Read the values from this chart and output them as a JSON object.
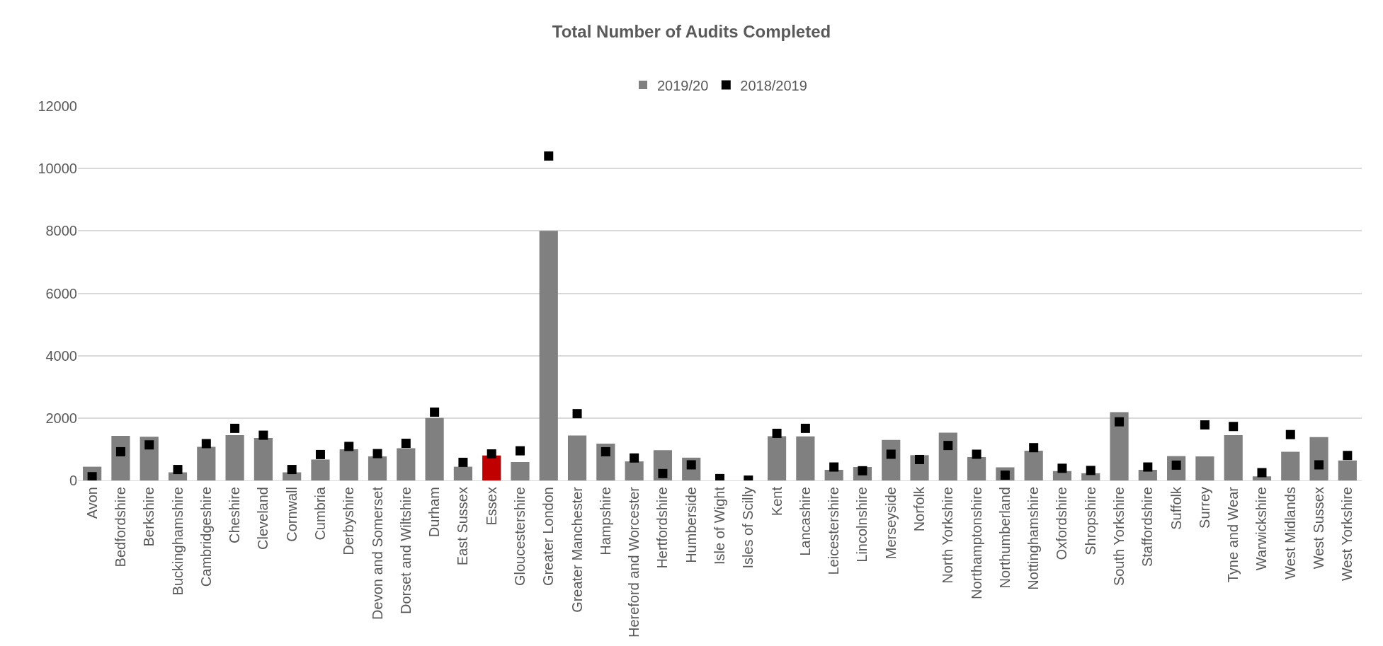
{
  "chart_data": {
    "type": "bar",
    "title": "Total Number of Audits Completed",
    "categories": [
      "Avon",
      "Bedfordshire",
      "Berkshire",
      "Buckinghamshire",
      "Cambridgeshire",
      "Cheshire",
      "Cleveland",
      "Cornwall",
      "Cumbria",
      "Derbyshire",
      "Devon and Somerset",
      "Dorset and Wiltshire",
      "Durham",
      "East Sussex",
      "Essex",
      "Gloucestershire",
      "Greater London",
      "Greater Manchester",
      "Hampshire",
      "Hereford and Worcester",
      "Hertfordshire",
      "Humberside",
      "Isle of Wight",
      "Isles of Scilly",
      "Kent",
      "Lancashire",
      "Leicestershire",
      "Lincolnshire",
      "Merseyside",
      "Norfolk",
      "North Yorkshire",
      "Northamptonshire",
      "Northumberland",
      "Nottinghamshire",
      "Oxfordshire",
      "Shropshire",
      "South Yorkshire",
      "Staffordshire",
      "Suffolk",
      "Surrey",
      "Tyne and Wear",
      "Warwickshire",
      "West Midlands",
      "West Sussex",
      "West Yorkshire"
    ],
    "series": [
      {
        "name": "2019/20",
        "color": "#808080",
        "colors": [
          "#808080",
          "#808080",
          "#808080",
          "#808080",
          "#808080",
          "#808080",
          "#808080",
          "#808080",
          "#808080",
          "#808080",
          "#808080",
          "#808080",
          "#808080",
          "#808080",
          "#c00000",
          "#808080",
          "#808080",
          "#808080",
          "#808080",
          "#808080",
          "#808080",
          "#808080",
          "#808080",
          "#808080",
          "#808080",
          "#808080",
          "#808080",
          "#808080",
          "#808080",
          "#808080",
          "#808080",
          "#808080",
          "#808080",
          "#808080",
          "#808080",
          "#808080",
          "#808080",
          "#808080",
          "#808080",
          "#808080",
          "#808080",
          "#808080",
          "#808080",
          "#808080",
          "#808080"
        ],
        "values": [
          440,
          1430,
          1400,
          260,
          1080,
          1450,
          1360,
          260,
          670,
          1000,
          770,
          1030,
          2000,
          440,
          800,
          590,
          8000,
          1440,
          1180,
          610,
          970,
          730,
          0,
          0,
          1420,
          1410,
          340,
          430,
          1300,
          810,
          1530,
          750,
          420,
          950,
          300,
          230,
          2190,
          340,
          780,
          770,
          1450,
          130,
          920,
          1390,
          640
        ]
      },
      {
        "name": "2018/2019",
        "type": "scatter",
        "marker": "square",
        "color": "#000000",
        "values": [
          120,
          920,
          1140,
          350,
          1180,
          1670,
          1450,
          350,
          830,
          1090,
          860,
          1190,
          2190,
          580,
          850,
          950,
          10400,
          2140,
          920,
          720,
          220,
          500,
          60,
          10,
          1510,
          1670,
          430,
          310,
          840,
          670,
          1120,
          840,
          170,
          1050,
          390,
          320,
          1880,
          430,
          490,
          1780,
          1730,
          250,
          1470,
          500,
          800
        ]
      }
    ],
    "ylim": [
      0,
      12000
    ],
    "yticks": [
      0,
      2000,
      4000,
      6000,
      8000,
      10000,
      12000
    ],
    "grid": "y",
    "legend": "top"
  }
}
